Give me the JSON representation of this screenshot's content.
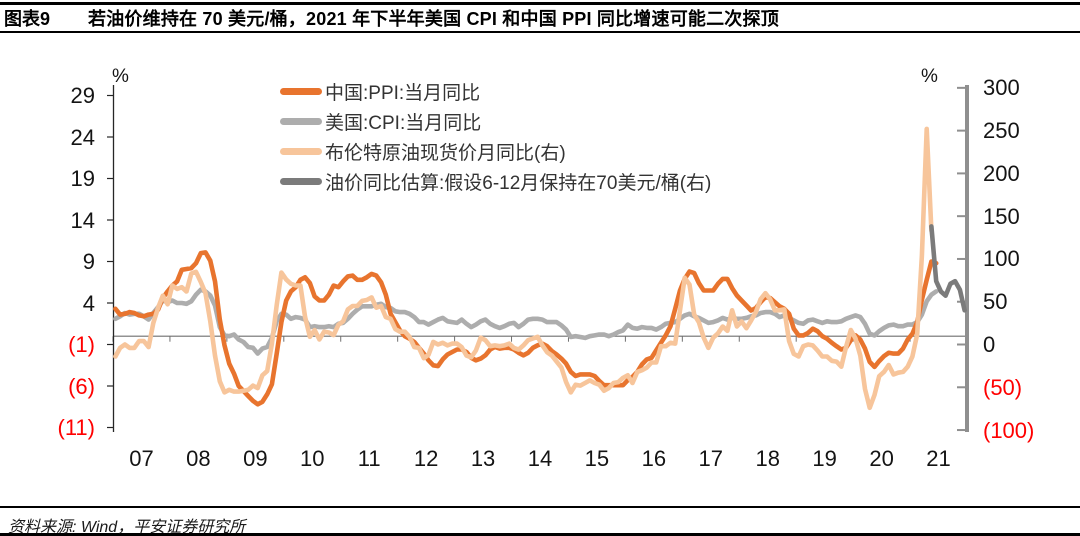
{
  "header": {
    "fig_label": "图表9",
    "title": "若油价维持在 70 美元/桶，2021 年下半年美国 CPI 和中国 PPI 同比增速可能二次探顶"
  },
  "footer": {
    "source": "资料来源: Wind，平安证券研究所"
  },
  "colors": {
    "negative_tick": "#ff0000",
    "axis_text": "#141414",
    "left_axis_line": "#262626",
    "right_axis_line": "#8f8f8f",
    "zero_line": "#6f6f6f",
    "ppi_orange": "#e8742e",
    "cpi_gray": "#adadad",
    "brent_peach": "#f7c59b",
    "estimate_gray": "#7b7b7b"
  },
  "legend": {
    "items": [
      {
        "label": "中国:PPI:当月同比",
        "color": "#e8742e"
      },
      {
        "label": "美国:CPI:当月同比",
        "color": "#adadad"
      },
      {
        "label": "布伦特原油现货价月同比(右)",
        "color": "#f7c59b"
      },
      {
        "label": "油价同比估算:假设6-12月保持在70美元/桶(右)",
        "color": "#7b7b7b"
      }
    ]
  },
  "chart_data": {
    "type": "line",
    "x_axis": {
      "start": "2007-01",
      "frequency": "monthly",
      "months_total": 180,
      "year_labels": [
        "07",
        "08",
        "09",
        "10",
        "11",
        "12",
        "13",
        "14",
        "15",
        "16",
        "17",
        "18",
        "19",
        "20",
        "21"
      ]
    },
    "left_axis": {
      "unit": "%",
      "min": -11,
      "max": 29,
      "tick_step": 5,
      "tick_values": [
        29,
        24,
        19,
        14,
        9,
        4,
        -1,
        -6,
        -11
      ]
    },
    "right_axis": {
      "unit": "%",
      "min": -100,
      "max": 300,
      "tick_step": 50,
      "tick_values": [
        300,
        250,
        200,
        150,
        100,
        50,
        0,
        -50,
        -100
      ]
    },
    "grid": false,
    "legend_position": "top-center",
    "series": [
      {
        "name": "美国:CPI:当月同比",
        "axis": "left",
        "color": "#adadad",
        "start_index": 0,
        "values": [
          2.1,
          2.4,
          2.8,
          2.6,
          2.7,
          2.7,
          2.4,
          2.0,
          2.8,
          3.5,
          4.3,
          4.1,
          4.3,
          4.0,
          4.0,
          3.9,
          4.2,
          5.0,
          5.6,
          5.4,
          4.9,
          3.7,
          1.1,
          0.1,
          0.0,
          0.2,
          -0.4,
          -0.7,
          -1.3,
          -1.4,
          -2.1,
          -1.5,
          -1.3,
          -0.2,
          1.8,
          2.7,
          2.6,
          2.1,
          2.3,
          2.2,
          2.0,
          1.1,
          1.2,
          1.1,
          1.1,
          1.2,
          1.1,
          1.5,
          1.6,
          2.1,
          2.7,
          3.2,
          3.6,
          3.6,
          3.6,
          3.8,
          3.9,
          3.5,
          3.4,
          3.0,
          2.9,
          2.9,
          2.7,
          2.3,
          1.7,
          1.7,
          1.4,
          1.7,
          2.0,
          2.2,
          1.8,
          1.7,
          1.6,
          2.0,
          1.5,
          1.1,
          1.4,
          1.8,
          2.0,
          1.5,
          1.2,
          1.0,
          1.2,
          1.5,
          1.6,
          1.1,
          1.5,
          2.0,
          2.1,
          2.1,
          2.0,
          1.7,
          1.7,
          1.7,
          1.3,
          0.8,
          -0.1,
          0.0,
          -0.1,
          -0.2,
          0.0,
          0.1,
          0.2,
          0.2,
          0.0,
          0.2,
          0.5,
          0.7,
          1.4,
          1.0,
          0.9,
          1.1,
          1.0,
          1.0,
          0.8,
          1.1,
          1.5,
          1.6,
          1.7,
          2.1,
          2.5,
          2.7,
          2.4,
          2.2,
          1.9,
          1.6,
          1.7,
          1.9,
          2.2,
          2.0,
          2.2,
          2.1,
          2.1,
          2.2,
          2.4,
          2.5,
          2.8,
          2.9,
          2.9,
          2.7,
          2.3,
          2.5,
          2.2,
          1.9,
          1.6,
          1.5,
          1.9,
          2.0,
          1.8,
          1.6,
          1.8,
          1.7,
          1.7,
          1.8,
          2.1,
          2.3,
          2.5,
          2.3,
          1.5,
          0.3,
          0.1,
          0.6,
          1.0,
          1.3,
          1.4,
          1.2,
          1.2,
          1.4,
          1.4,
          1.7,
          2.6,
          4.2,
          5.0,
          5.4
        ]
      },
      {
        "name": "中国:PPI:当月同比",
        "axis": "left",
        "color": "#e8742e",
        "start_index": 0,
        "values": [
          3.3,
          2.6,
          2.7,
          2.9,
          2.8,
          2.5,
          2.4,
          2.6,
          2.7,
          3.2,
          4.6,
          5.4,
          6.1,
          6.6,
          8.0,
          8.1,
          8.2,
          8.8,
          10.0,
          10.1,
          9.1,
          6.6,
          2.0,
          -1.1,
          -3.3,
          -4.5,
          -6.0,
          -6.6,
          -7.2,
          -7.8,
          -8.2,
          -7.9,
          -7.0,
          -5.8,
          -2.1,
          1.7,
          4.3,
          5.4,
          5.9,
          6.8,
          7.1,
          6.4,
          4.8,
          4.3,
          4.3,
          5.0,
          6.1,
          5.9,
          6.6,
          7.2,
          7.3,
          6.8,
          6.8,
          7.1,
          7.5,
          7.3,
          6.5,
          5.0,
          2.7,
          1.7,
          0.7,
          0.0,
          -0.3,
          -0.7,
          -1.4,
          -2.1,
          -2.9,
          -3.5,
          -3.6,
          -2.8,
          -2.2,
          -1.9,
          -1.6,
          -1.6,
          -1.9,
          -2.6,
          -2.9,
          -2.7,
          -2.3,
          -1.6,
          -1.3,
          -1.5,
          -1.4,
          -1.4,
          -1.6,
          -2.0,
          -2.3,
          -2.0,
          -1.4,
          -1.1,
          -0.9,
          -1.2,
          -1.8,
          -2.2,
          -2.7,
          -3.3,
          -4.3,
          -4.8,
          -4.6,
          -4.6,
          -4.6,
          -4.8,
          -5.4,
          -5.9,
          -5.9,
          -5.9,
          -5.9,
          -5.9,
          -5.3,
          -4.9,
          -4.3,
          -3.4,
          -2.8,
          -2.6,
          -1.7,
          -0.8,
          0.1,
          1.2,
          3.3,
          5.5,
          6.9,
          7.8,
          7.6,
          6.4,
          5.5,
          5.5,
          5.5,
          6.3,
          6.9,
          6.9,
          5.8,
          4.9,
          4.3,
          3.7,
          3.1,
          3.4,
          4.1,
          4.7,
          4.6,
          4.1,
          3.6,
          3.3,
          2.7,
          0.9,
          0.1,
          0.1,
          0.4,
          0.9,
          0.6,
          0.0,
          -0.3,
          -0.8,
          -1.2,
          -1.6,
          -1.4,
          -0.5,
          0.1,
          -0.4,
          -1.5,
          -3.1,
          -3.7,
          -3.0,
          -2.4,
          -2.0,
          -2.1,
          -2.1,
          -1.5,
          -0.4,
          0.3,
          1.7,
          4.4,
          6.8,
          9.0,
          8.8
        ]
      },
      {
        "name": "布伦特原油现货价月同比(右)",
        "axis": "right",
        "color": "#f7c59b",
        "start_index": 0,
        "values": [
          -14,
          -4,
          0,
          -4,
          -4,
          4,
          4,
          -3,
          25,
          43,
          57,
          47,
          69,
          65,
          67,
          62,
          83,
          85,
          73,
          60,
          27,
          -13,
          -43,
          -56,
          -53,
          -55,
          -55,
          -54,
          -53,
          -48,
          -51,
          -36,
          -31,
          1,
          46,
          84,
          76,
          71,
          69,
          69,
          32,
          9,
          17,
          6,
          15,
          14,
          11,
          23,
          27,
          41,
          45,
          45,
          51,
          52,
          55,
          43,
          45,
          32,
          30,
          18,
          15,
          15,
          9,
          -3,
          -4,
          -16,
          -12,
          3,
          0,
          2,
          -1,
          1,
          1,
          -3,
          -13,
          -15,
          -7,
          8,
          5,
          -2,
          -1,
          -2,
          -1,
          1,
          -4,
          -6,
          -1,
          5,
          7,
          9,
          -1,
          -9,
          -13,
          -20,
          -27,
          -44,
          -56,
          -47,
          -48,
          -45,
          -42,
          -45,
          -47,
          -54,
          -51,
          -45,
          -44,
          -39,
          -36,
          -45,
          -32,
          -30,
          -27,
          -21,
          -21,
          -2,
          -2,
          2,
          1,
          40,
          78,
          70,
          35,
          26,
          8,
          -4,
          8,
          13,
          21,
          16,
          40,
          21,
          27,
          19,
          28,
          38,
          53,
          60,
          53,
          40,
          40,
          41,
          4,
          -11,
          -14,
          -2,
          0,
          -1,
          -7,
          -14,
          -14,
          -19,
          -20,
          -26,
          -3,
          17,
          7,
          -13,
          -52,
          -74,
          -59,
          -37,
          -32,
          -24,
          -35,
          -33,
          -32,
          -26,
          -14,
          12,
          104,
          252,
          133
        ]
      },
      {
        "name": "油价同比估算:假设6-12月保持在70美元/桶(右)",
        "axis": "right",
        "color": "#7b7b7b",
        "start_index": 172,
        "values": [
          138,
          74,
          62,
          57,
          71,
          74,
          64,
          40
        ]
      }
    ]
  }
}
